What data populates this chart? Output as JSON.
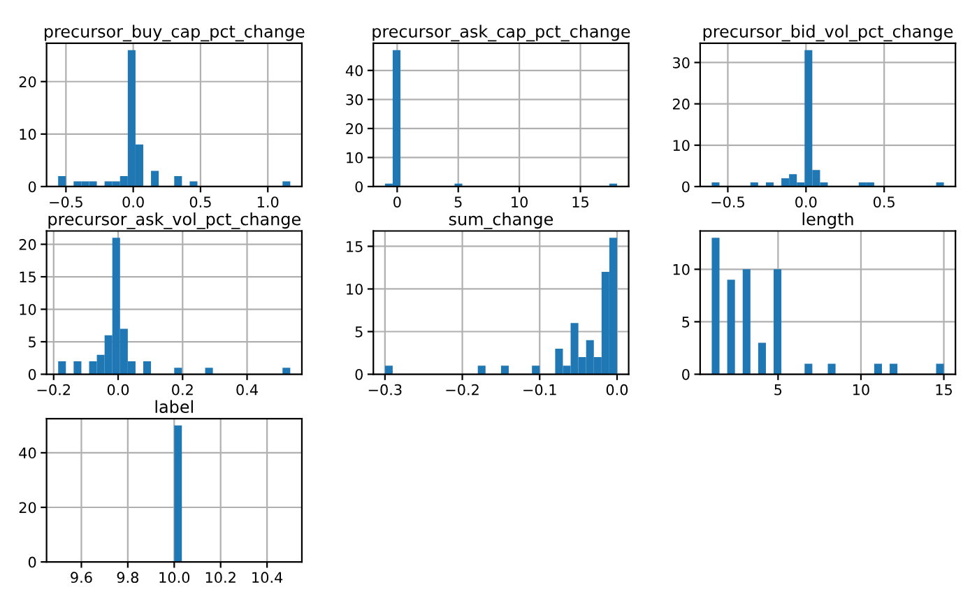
{
  "chart_data": [
    {
      "type": "histogram",
      "title": "precursor_buy_cap_pct_change",
      "color": "#1f77b4",
      "grid": true,
      "bins": [
        -0.558,
        -0.5005,
        -0.443,
        -0.3855,
        -0.328,
        -0.2705,
        -0.213,
        -0.1555,
        -0.098,
        -0.0405,
        0.017,
        0.0745,
        0.132,
        0.1895,
        0.247,
        0.3045,
        0.362,
        0.4195,
        0.477,
        0.5345,
        0.592,
        0.6495,
        0.707,
        0.7645,
        0.822,
        0.8795,
        0.937,
        0.9945,
        1.052,
        1.1095,
        1.167
      ],
      "values": [
        2,
        0,
        1,
        1,
        1,
        0,
        1,
        1,
        2,
        26,
        8,
        0,
        3,
        0,
        0,
        2,
        0,
        1,
        0,
        0,
        0,
        0,
        0,
        0,
        0,
        0,
        0,
        0,
        0,
        1
      ],
      "xlim": [
        -0.644,
        1.253
      ],
      "ylim": [
        0,
        27.3
      ],
      "xticks": [
        {
          "value": -0.5,
          "label": "−0.5"
        },
        {
          "value": 0,
          "label": "0.0"
        },
        {
          "value": 0.5,
          "label": "0.5"
        },
        {
          "value": 1,
          "label": "1.0"
        }
      ],
      "yticks": [
        0,
        10,
        20
      ]
    },
    {
      "type": "histogram",
      "title": "precursor_ask_cap_pct_change",
      "color": "#1f77b4",
      "grid": true,
      "bins": [
        -1,
        -0.367,
        0.267,
        0.9,
        1.533,
        2.167,
        2.8,
        3.433,
        4.067,
        4.7,
        5.333,
        5.967,
        6.6,
        7.233,
        7.867,
        8.5,
        9.133,
        9.767,
        10.4,
        11.033,
        11.667,
        12.3,
        12.933,
        13.567,
        14.2,
        14.833,
        15.467,
        16.1,
        16.733,
        17.367,
        18
      ],
      "values": [
        1,
        47,
        0,
        0,
        0,
        0,
        0,
        0,
        0,
        1,
        0,
        0,
        0,
        0,
        0,
        0,
        0,
        0,
        0,
        0,
        0,
        0,
        0,
        0,
        0,
        0,
        0,
        0,
        0,
        1
      ],
      "xlim": [
        -1.95,
        18.95
      ],
      "ylim": [
        0,
        49.35
      ],
      "xticks": [
        0,
        5,
        10,
        15
      ],
      "yticks": [
        0,
        10,
        20,
        30,
        40
      ]
    },
    {
      "type": "histogram",
      "title": "precursor_bid_vol_pct_change",
      "color": "#1f77b4",
      "grid": true,
      "bins": [
        -0.603,
        -0.5535,
        -0.504,
        -0.4545,
        -0.405,
        -0.3555,
        -0.306,
        -0.2565,
        -0.207,
        -0.1575,
        -0.108,
        -0.0585,
        -0.009,
        0.0405,
        0.09,
        0.1395,
        0.189,
        0.2385,
        0.288,
        0.3375,
        0.387,
        0.4365,
        0.486,
        0.5355,
        0.585,
        0.6345,
        0.684,
        0.7335,
        0.783,
        0.8325,
        0.882
      ],
      "values": [
        1,
        0,
        0,
        0,
        0,
        1,
        0,
        1,
        0,
        2,
        3,
        1,
        33,
        4,
        1,
        0,
        0,
        0,
        0,
        1,
        1,
        0,
        0,
        0,
        0,
        0,
        0,
        0,
        0,
        1
      ],
      "xlim": [
        -0.677,
        0.956
      ],
      "ylim": [
        0,
        34.65
      ],
      "xticks": [
        {
          "value": -0.5,
          "label": "−0.5"
        },
        {
          "value": 0,
          "label": "0.0"
        },
        {
          "value": 0.5,
          "label": "0.5"
        }
      ],
      "yticks": [
        0,
        10,
        20,
        30
      ]
    },
    {
      "type": "histogram",
      "title": "precursor_ask_vol_pct_change",
      "color": "#1f77b4",
      "grid": true,
      "bins": [
        -0.186,
        -0.162,
        -0.138,
        -0.114,
        -0.09,
        -0.066,
        -0.042,
        -0.018,
        0.006,
        0.03,
        0.054,
        0.078,
        0.102,
        0.126,
        0.15,
        0.174,
        0.198,
        0.222,
        0.246,
        0.27,
        0.294,
        0.318,
        0.342,
        0.366,
        0.39,
        0.414,
        0.438,
        0.462,
        0.486,
        0.51,
        0.534
      ],
      "values": [
        2,
        0,
        2,
        0,
        2,
        3,
        6,
        21,
        7,
        2,
        0,
        2,
        0,
        0,
        0,
        1,
        0,
        0,
        0,
        1,
        0,
        0,
        0,
        0,
        0,
        0,
        0,
        0,
        0,
        1
      ],
      "xlim": [
        -0.222,
        0.57
      ],
      "ylim": [
        0,
        22.05
      ],
      "xticks": [
        {
          "value": -0.2,
          "label": "−0.2"
        },
        {
          "value": 0,
          "label": "0.0"
        },
        {
          "value": 0.2,
          "label": "0.2"
        },
        {
          "value": 0.4,
          "label": "0.4"
        }
      ],
      "yticks": [
        0,
        5,
        10,
        15,
        20
      ]
    },
    {
      "type": "histogram",
      "title": "sum_change",
      "color": "#1f77b4",
      "grid": true,
      "bins": [
        -0.3,
        -0.29,
        -0.28,
        -0.27,
        -0.26,
        -0.25,
        -0.24,
        -0.23,
        -0.22,
        -0.21,
        -0.2,
        -0.19,
        -0.18,
        -0.17,
        -0.16,
        -0.15,
        -0.14,
        -0.13,
        -0.12,
        -0.11,
        -0.1,
        -0.09,
        -0.08,
        -0.07,
        -0.06,
        -0.05,
        -0.04,
        -0.03,
        -0.02,
        -0.01,
        0
      ],
      "values": [
        1,
        0,
        0,
        0,
        0,
        0,
        0,
        0,
        0,
        0,
        0,
        0,
        1,
        0,
        0,
        1,
        0,
        0,
        0,
        1,
        0,
        0,
        3,
        1,
        6,
        2,
        4,
        2,
        12,
        16
      ],
      "xlim": [
        -0.315,
        0.015
      ],
      "ylim": [
        0,
        16.8
      ],
      "xticks": [
        {
          "value": -0.3,
          "label": "−0.3"
        },
        {
          "value": -0.2,
          "label": "−0.2"
        },
        {
          "value": -0.1,
          "label": "−0.1"
        },
        {
          "value": 0,
          "label": "0.0"
        }
      ],
      "yticks": [
        0,
        5,
        10,
        15
      ]
    },
    {
      "type": "histogram",
      "title": "length",
      "color": "#1f77b4",
      "grid": true,
      "bins": [
        1,
        1.467,
        1.933,
        2.4,
        2.867,
        3.333,
        3.8,
        4.267,
        4.733,
        5.2,
        5.667,
        6.133,
        6.6,
        7.067,
        7.533,
        8,
        8.467,
        8.933,
        9.4,
        9.867,
        10.333,
        10.8,
        11.267,
        11.733,
        12.2,
        12.667,
        13.133,
        13.6,
        14.067,
        14.533,
        15
      ],
      "values": [
        13,
        0,
        9,
        0,
        10,
        0,
        3,
        0,
        10,
        0,
        0,
        0,
        1,
        0,
        0,
        1,
        0,
        0,
        0,
        0,
        0,
        1,
        0,
        1,
        0,
        0,
        0,
        0,
        0,
        1
      ],
      "xlim": [
        0.3,
        15.7
      ],
      "ylim": [
        0,
        13.65
      ],
      "xticks": [
        5,
        10,
        15
      ],
      "yticks": [
        0,
        5,
        10
      ]
    },
    {
      "type": "histogram",
      "title": "label",
      "color": "#1f77b4",
      "grid": true,
      "bins": [
        9.5,
        9.533,
        9.567,
        9.6,
        9.633,
        9.667,
        9.7,
        9.733,
        9.767,
        9.8,
        9.833,
        9.867,
        9.9,
        9.933,
        9.967,
        10,
        10.033,
        10.067,
        10.1,
        10.133,
        10.167,
        10.2,
        10.233,
        10.267,
        10.3,
        10.333,
        10.367,
        10.4,
        10.433,
        10.467,
        10.5
      ],
      "values": [
        0,
        0,
        0,
        0,
        0,
        0,
        0,
        0,
        0,
        0,
        0,
        0,
        0,
        0,
        0,
        50,
        0,
        0,
        0,
        0,
        0,
        0,
        0,
        0,
        0,
        0,
        0,
        0,
        0,
        0
      ],
      "xlim": [
        9.45,
        10.55
      ],
      "ylim": [
        0,
        52.5
      ],
      "xticks": [
        9.6,
        9.8,
        {
          "value": 10,
          "label": "10.0"
        },
        10.2,
        10.4
      ],
      "yticks": [
        0,
        20,
        40
      ]
    }
  ]
}
